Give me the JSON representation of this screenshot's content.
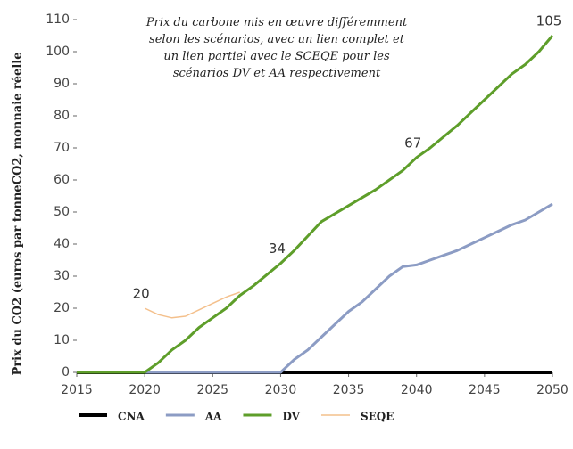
{
  "chart_data": {
    "type": "line",
    "title": "Prix du carbone mis en œuvre différemment selon les scénarios, avec un lien complet et un lien partiel avec le SCEQE pour les scénarios DV et AA respectivement",
    "ylabel": "Prix du CO2 (euros par tonneCO2, monnaie réelle",
    "x": [
      2015,
      2016,
      2017,
      2018,
      2019,
      2020,
      2021,
      2022,
      2023,
      2024,
      2025,
      2026,
      2027,
      2028,
      2029,
      2030,
      2031,
      2032,
      2033,
      2034,
      2035,
      2036,
      2037,
      2038,
      2039,
      2040,
      2041,
      2042,
      2043,
      2044,
      2045,
      2046,
      2047,
      2048,
      2049,
      2050
    ],
    "xlim": [
      2015,
      2050
    ],
    "xticks": [
      2015,
      2020,
      2025,
      2030,
      2035,
      2040,
      2045,
      2050
    ],
    "ylim": [
      0,
      110
    ],
    "yticks": [
      0,
      10,
      20,
      30,
      40,
      50,
      60,
      70,
      80,
      90,
      100,
      110
    ],
    "legend": "bottom",
    "series": [
      {
        "name": "CNA",
        "color": "#000000",
        "width": 4,
        "values": [
          0,
          0,
          0,
          0,
          0,
          0,
          0,
          0,
          0,
          0,
          0,
          0,
          0,
          0,
          0,
          0,
          0,
          0,
          0,
          0,
          0,
          0,
          0,
          0,
          0,
          0,
          0,
          0,
          0,
          0,
          0,
          0,
          0,
          0,
          0,
          0
        ]
      },
      {
        "name": "AA",
        "color": "#8c9cc4",
        "width": 3,
        "values": [
          0,
          0,
          0,
          0,
          0,
          0,
          0,
          0,
          0,
          0,
          0,
          0,
          0,
          0,
          0,
          0,
          4,
          7,
          11,
          15,
          19,
          22,
          26,
          30,
          33,
          33.5,
          35,
          36.5,
          38,
          40,
          42,
          44,
          46,
          47.5,
          50,
          52.5
        ]
      },
      {
        "name": "DV",
        "color": "#5e9e2a",
        "width": 3,
        "values": [
          0,
          0,
          0,
          0,
          0,
          0,
          3,
          7,
          10,
          14,
          17,
          20,
          24,
          27,
          30.5,
          34,
          38,
          42.5,
          47,
          49.5,
          52,
          54.5,
          57,
          60,
          63,
          67,
          70,
          73.5,
          77,
          81,
          85,
          89,
          93,
          96,
          100,
          105
        ],
        "value_labels": [
          null,
          null,
          null,
          null,
          null,
          null,
          null,
          null,
          null,
          null,
          null,
          null,
          null,
          null,
          null,
          "34",
          null,
          null,
          null,
          null,
          null,
          null,
          null,
          null,
          null,
          "67",
          null,
          null,
          null,
          null,
          null,
          null,
          null,
          null,
          null,
          "105"
        ]
      },
      {
        "name": "SEQE",
        "color": "#f4c08c",
        "width": 1.5,
        "values": [
          null,
          null,
          null,
          null,
          null,
          20,
          18,
          17,
          17.5,
          19.5,
          21.5,
          23.5,
          25,
          null,
          null,
          null,
          null,
          null,
          null,
          null,
          null,
          null,
          null,
          null,
          null,
          null,
          null,
          null,
          null,
          null,
          null,
          null,
          null,
          null,
          null,
          null
        ],
        "value_labels": [
          null,
          null,
          null,
          null,
          null,
          "20",
          null,
          null,
          null,
          null,
          null,
          null,
          null,
          null,
          null,
          null,
          null,
          null,
          null,
          null,
          null,
          null,
          null,
          null,
          null,
          null,
          null,
          null,
          null,
          null,
          null,
          null,
          null,
          null,
          null,
          null
        ]
      }
    ]
  }
}
